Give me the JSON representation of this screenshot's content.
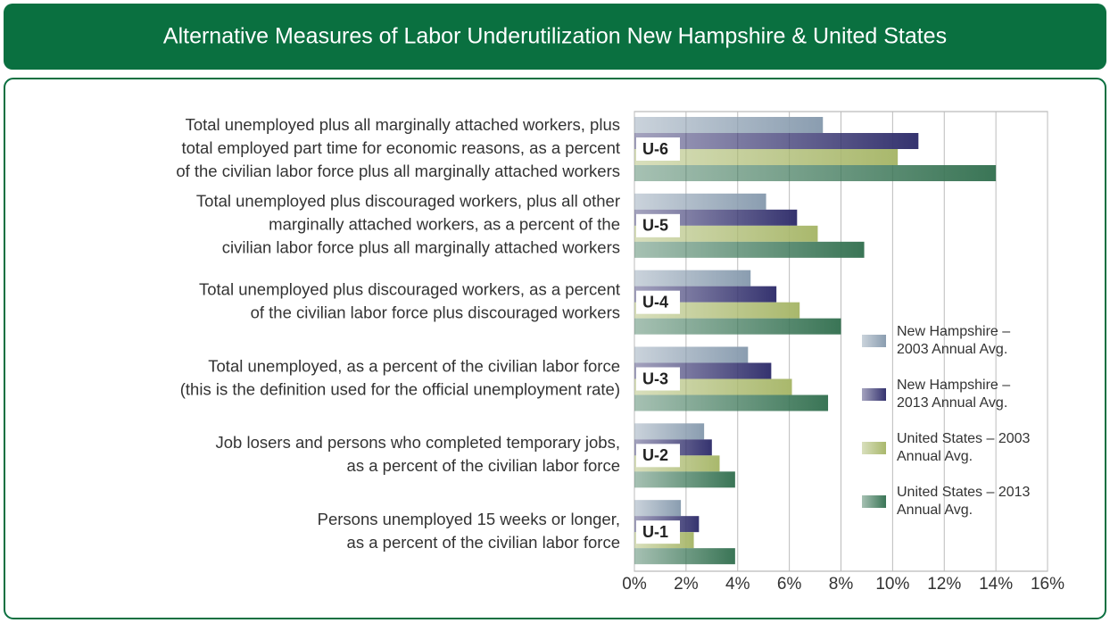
{
  "chart_data": {
    "type": "bar",
    "orientation": "horizontal",
    "title": "Alternative Measures of Labor Underutilization  New Hampshire & United States",
    "categories": [
      "U-6",
      "U-5",
      "U-4",
      "U-3",
      "U-2",
      "U-1"
    ],
    "descriptions": [
      [
        "Total unemployed plus all marginally attached workers, plus",
        "total employed part time for economic reasons, as a percent",
        "of the civilian labor force plus all marginally attached workers"
      ],
      [
        "Total unemployed plus discouraged workers, plus all other",
        "marginally attached workers, as a percent of the",
        "civilian labor force plus all marginally attached workers"
      ],
      [
        "Total unemployed plus discouraged workers, as a percent",
        "of the civilian labor force plus discouraged workers"
      ],
      [
        "Total unemployed, as a percent of the civilian labor force",
        "(this is the definition used for the official unemployment rate)"
      ],
      [
        "Job losers and persons who completed temporary jobs,",
        "as a percent of the civilian labor force"
      ],
      [
        "Persons unemployed 15 weeks or longer,",
        "as a percent of the civilian labor force"
      ]
    ],
    "series": [
      {
        "name": "New Hampshire – 2003 Annual Avg.",
        "color": "#8a9db0",
        "values": [
          7.3,
          5.1,
          4.5,
          4.4,
          2.7,
          1.8
        ]
      },
      {
        "name": "New Hampshire – 2013 Annual Avg.",
        "color": "#35336f",
        "values": [
          11.0,
          6.3,
          5.5,
          5.3,
          3.0,
          2.5
        ]
      },
      {
        "name": "United States – 2003 Annual Avg.",
        "color": "#a9b86c",
        "values": [
          10.2,
          7.1,
          6.4,
          6.1,
          3.3,
          2.3
        ]
      },
      {
        "name": "United States – 2013 Annual Avg.",
        "color": "#3a7556",
        "values": [
          14.0,
          8.9,
          8.0,
          7.5,
          3.9,
          3.9
        ]
      }
    ],
    "xlim": [
      0,
      16
    ],
    "xticks": [
      {
        "value": 0,
        "label": "0%"
      },
      {
        "value": 2,
        "label": "2%"
      },
      {
        "value": 4,
        "label": "4%"
      },
      {
        "value": 6,
        "label": "6%"
      },
      {
        "value": 8,
        "label": "8%"
      },
      {
        "value": 10,
        "label": "10%"
      },
      {
        "value": 12,
        "label": "12%"
      },
      {
        "value": 14,
        "label": "14%"
      },
      {
        "value": 16,
        "label": "16%"
      }
    ],
    "grid": true,
    "legend": "right"
  }
}
